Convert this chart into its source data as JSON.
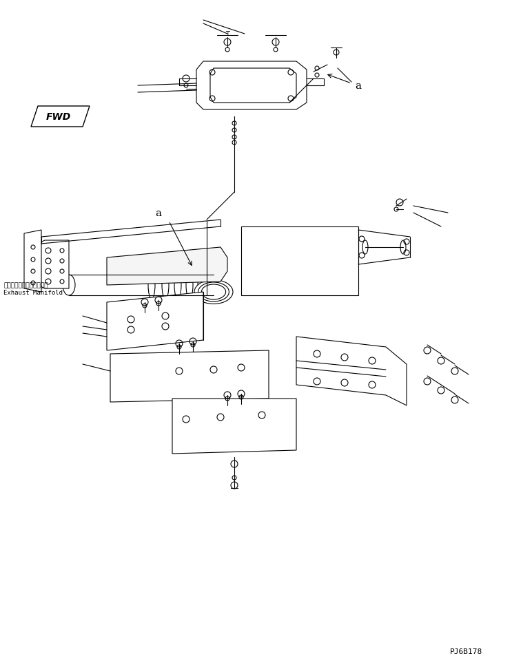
{
  "bg_color": "#ffffff",
  "line_color": "#000000",
  "fig_width": 7.43,
  "fig_height": 9.7,
  "dpi": 100,
  "part_code": "PJ6B178",
  "fwd_label": "FWD",
  "label_a1": "a",
  "label_a2": "a",
  "exhaust_jp": "エキゾーストマニホールド",
  "exhaust_en": "Exhaust Manifold"
}
